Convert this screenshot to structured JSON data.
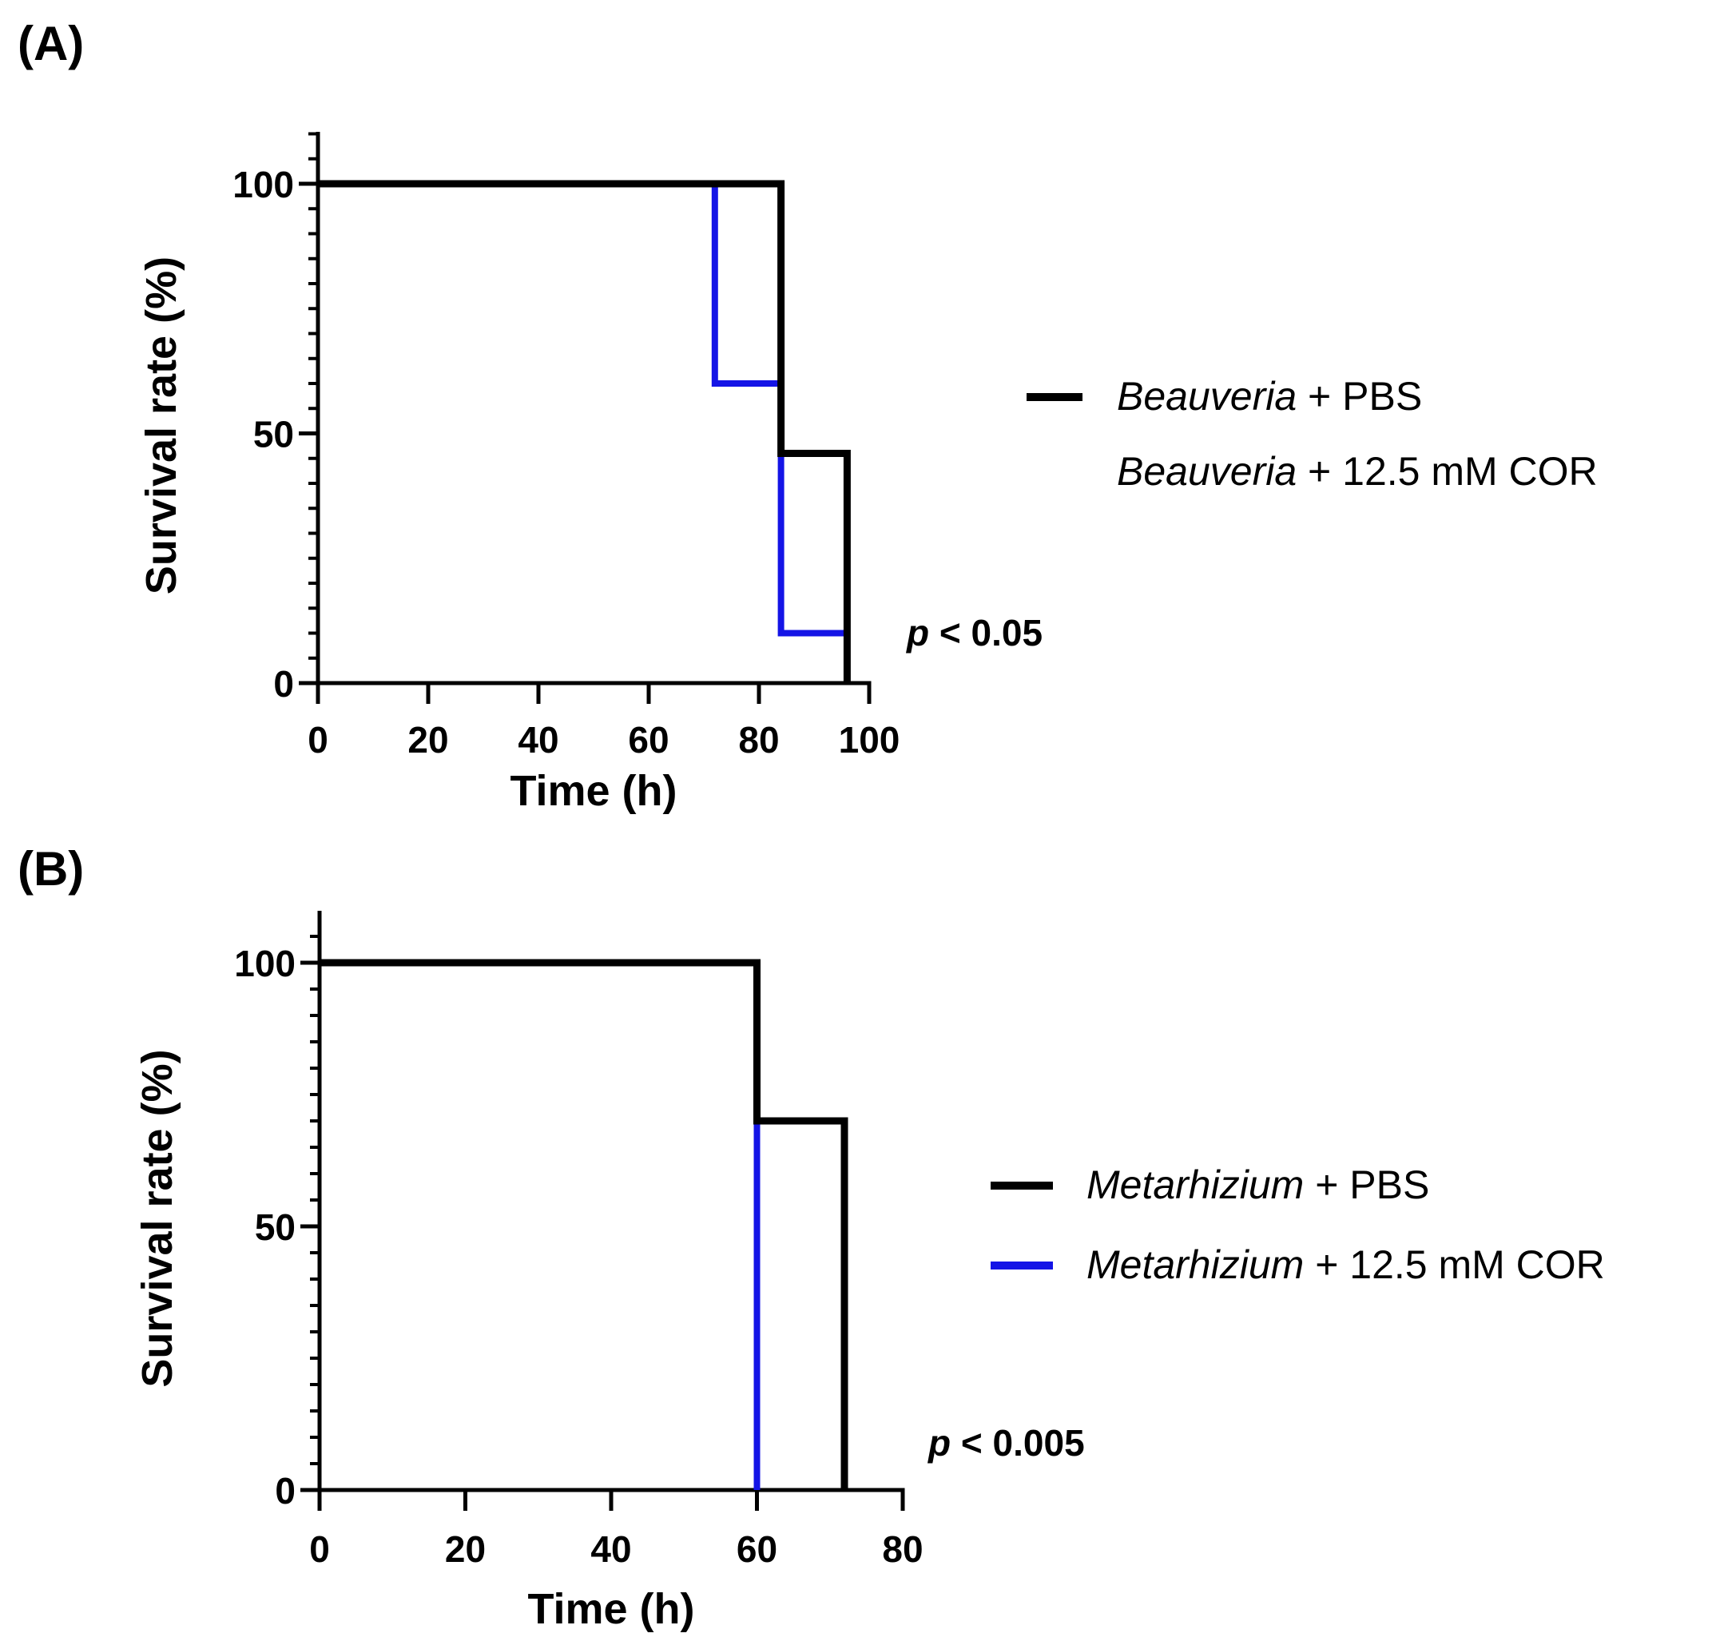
{
  "figure": {
    "panels": [
      "(A)",
      "(B)"
    ]
  },
  "chart_data": [
    {
      "type": "line",
      "step": true,
      "panel_label": "(A)",
      "title": "",
      "xlabel": "Time (h)",
      "ylabel": "Survival rate (%)",
      "xlim": [
        0,
        100
      ],
      "ylim": [
        0,
        110
      ],
      "xticks": [
        0,
        20,
        40,
        60,
        80,
        100
      ],
      "yticks": [
        0,
        50,
        100
      ],
      "annotation": {
        "prefix": "p",
        "text": " < 0.05"
      },
      "series": [
        {
          "name_italic": "Beauveria",
          "name_rest": " + PBS",
          "color": "#000000",
          "x": [
            0,
            84,
            84,
            96,
            96
          ],
          "y": [
            100,
            100,
            46,
            46,
            0
          ]
        },
        {
          "name_italic": "Beauveria",
          "name_rest": " + 12.5 mM COR",
          "color": "#1414e6",
          "x": [
            0,
            72,
            72,
            84,
            84,
            96
          ],
          "y": [
            100,
            100,
            60,
            60,
            10,
            10
          ]
        }
      ]
    },
    {
      "type": "line",
      "step": true,
      "panel_label": "(B)",
      "title": "",
      "xlabel": "Time (h)",
      "ylabel": "Survival rate (%)",
      "xlim": [
        0,
        80
      ],
      "ylim": [
        0,
        110
      ],
      "xticks": [
        0,
        20,
        40,
        60,
        80
      ],
      "yticks": [
        0,
        50,
        100
      ],
      "annotation": {
        "prefix": "p",
        "text": " < 0.005"
      },
      "series": [
        {
          "name_italic": "Metarhizium",
          "name_rest": " + PBS",
          "color": "#000000",
          "x": [
            0,
            60,
            60,
            72,
            72
          ],
          "y": [
            100,
            100,
            70,
            70,
            0
          ]
        },
        {
          "name_italic": "Metarhizium",
          "name_rest": " + 12.5 mM COR",
          "color": "#1414e6",
          "x": [
            0,
            60,
            60
          ],
          "y": [
            100,
            100,
            0
          ]
        }
      ]
    }
  ]
}
